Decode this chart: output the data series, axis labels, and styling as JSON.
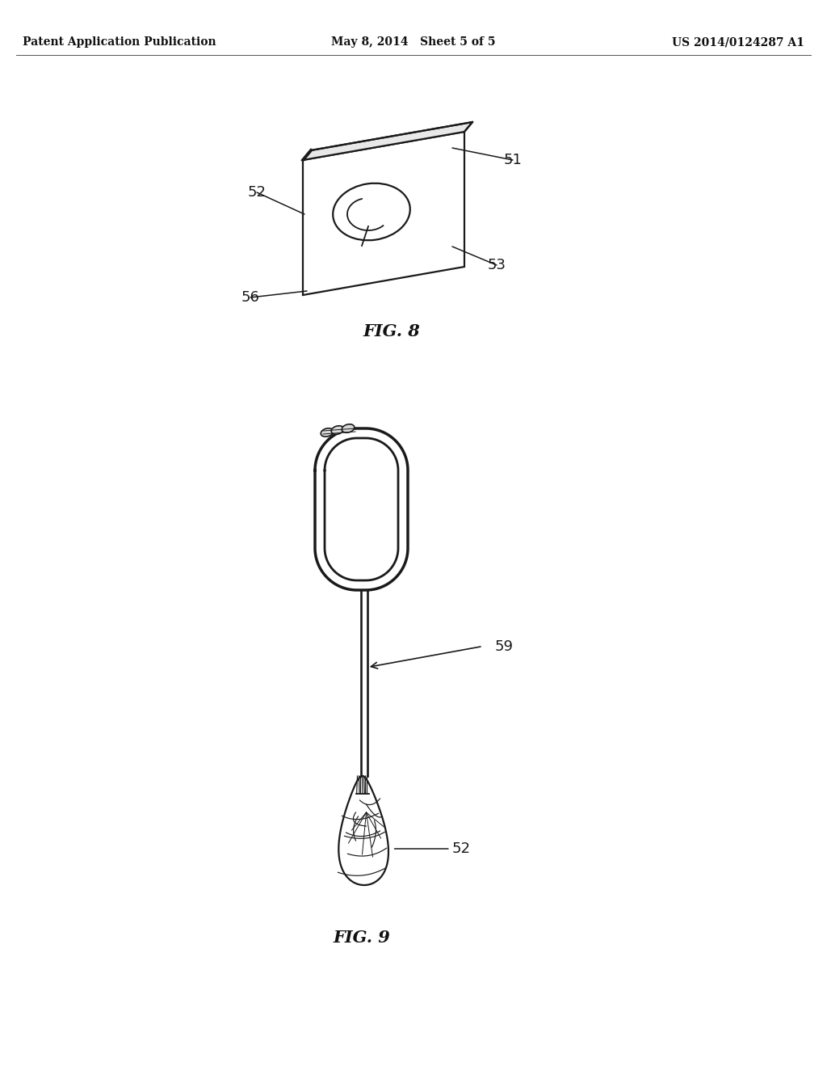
{
  "background_color": "#ffffff",
  "header_left": "Patent Application Publication",
  "header_center": "May 8, 2014   Sheet 5 of 5",
  "header_right": "US 2014/0124287 A1",
  "fig8_label": "FIG. 8",
  "fig9_label": "FIG. 9",
  "line_color": "#1a1a1a",
  "lw_main": 1.6,
  "lw_thick": 2.8,
  "lw_loop": 2.5
}
